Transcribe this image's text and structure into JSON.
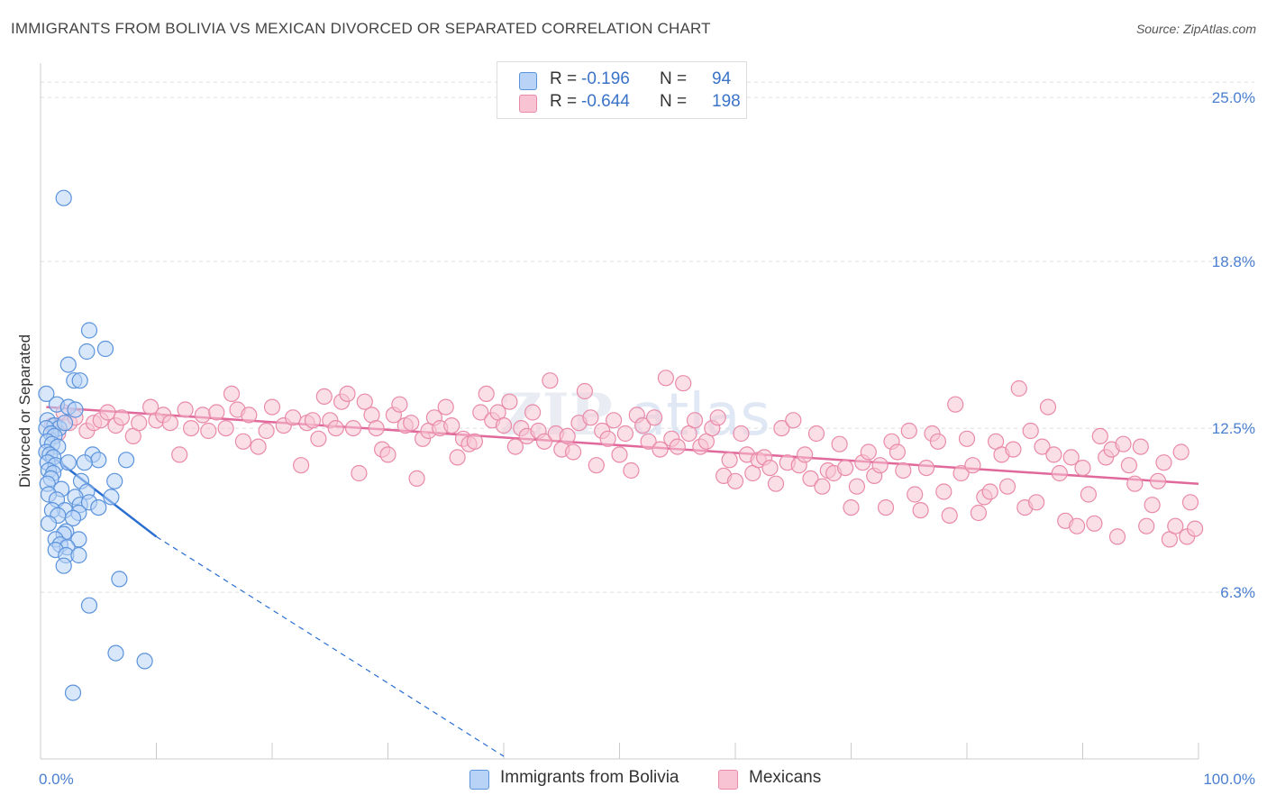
{
  "header": {
    "title": "IMMIGRANTS FROM BOLIVIA VS MEXICAN DIVORCED OR SEPARATED CORRELATION CHART",
    "source": "Source: ZipAtlas.com"
  },
  "legend": {
    "rows": [
      {
        "r_label": "R =",
        "r_value": "-0.196",
        "n_label": "N =",
        "n_value": "94"
      },
      {
        "r_label": "R =",
        "r_value": "-0.644",
        "n_label": "N =",
        "n_value": "198"
      }
    ]
  },
  "colors": {
    "bolivia_fill": "#b8d3f5",
    "bolivia_stroke": "#5b93dc",
    "bolivia_line": "#2a6fd0",
    "mexican_fill": "#f8c4d4",
    "mexican_stroke": "#e98aa9",
    "mexican_line": "#e0689a",
    "tick_text": "#4a7fd0",
    "grid": "#dddddd"
  },
  "chart_data": {
    "type": "scatter",
    "title": "IMMIGRANTS FROM BOLIVIA VS MEXICAN DIVORCED OR SEPARATED CORRELATION CHART",
    "xlabel": "",
    "ylabel": "Divorced or Separated",
    "xlim": [
      0,
      100
    ],
    "ylim": [
      0,
      26.3
    ],
    "y_ticks": [
      6.3,
      12.5,
      18.8,
      25.0
    ],
    "y_tick_labels": [
      "6.3%",
      "12.5%",
      "18.8%",
      "25.0%"
    ],
    "x_tick_labels": [
      "0.0%",
      "100.0%"
    ],
    "grid": true,
    "legend_position": "top-center",
    "series": [
      {
        "name": "Immigrants from Bolivia",
        "color": "#5b93dc",
        "trend": {
          "x": [
            0.5,
            10.0
          ],
          "y": [
            11.6,
            8.4
          ],
          "dashed_to": [
            40.0,
            0.1
          ]
        },
        "points": [
          [
            2.0,
            21.2
          ],
          [
            4.2,
            16.2
          ],
          [
            4.0,
            15.4
          ],
          [
            5.6,
            15.5
          ],
          [
            2.4,
            14.9
          ],
          [
            2.9,
            14.3
          ],
          [
            3.4,
            14.3
          ],
          [
            0.5,
            13.8
          ],
          [
            1.4,
            13.4
          ],
          [
            2.4,
            13.3
          ],
          [
            3.0,
            13.2
          ],
          [
            0.6,
            12.8
          ],
          [
            1.2,
            12.6
          ],
          [
            1.6,
            12.5
          ],
          [
            2.1,
            12.7
          ],
          [
            0.5,
            12.5
          ],
          [
            0.9,
            12.3
          ],
          [
            1.2,
            12.2
          ],
          [
            0.6,
            12.0
          ],
          [
            1.0,
            11.9
          ],
          [
            1.5,
            11.8
          ],
          [
            0.5,
            11.6
          ],
          [
            0.8,
            11.5
          ],
          [
            1.1,
            11.4
          ],
          [
            4.5,
            11.5
          ],
          [
            5.0,
            11.3
          ],
          [
            7.4,
            11.3
          ],
          [
            0.6,
            11.2
          ],
          [
            1.3,
            11.1
          ],
          [
            2.4,
            11.2
          ],
          [
            3.8,
            11.2
          ],
          [
            0.7,
            10.9
          ],
          [
            1.1,
            10.8
          ],
          [
            0.9,
            10.6
          ],
          [
            0.6,
            10.4
          ],
          [
            3.5,
            10.5
          ],
          [
            6.4,
            10.5
          ],
          [
            1.8,
            10.2
          ],
          [
            4.0,
            10.1
          ],
          [
            0.7,
            10.0
          ],
          [
            3.0,
            9.9
          ],
          [
            6.1,
            9.9
          ],
          [
            1.4,
            9.8
          ],
          [
            3.4,
            9.6
          ],
          [
            4.2,
            9.7
          ],
          [
            5.0,
            9.5
          ],
          [
            2.1,
            9.4
          ],
          [
            1.0,
            9.4
          ],
          [
            3.3,
            9.3
          ],
          [
            1.5,
            9.2
          ],
          [
            2.8,
            9.1
          ],
          [
            0.7,
            8.9
          ],
          [
            2.2,
            8.6
          ],
          [
            2.0,
            8.5
          ],
          [
            1.3,
            8.3
          ],
          [
            3.3,
            8.3
          ],
          [
            1.7,
            8.1
          ],
          [
            2.3,
            8.0
          ],
          [
            1.3,
            7.9
          ],
          [
            2.2,
            7.7
          ],
          [
            3.3,
            7.7
          ],
          [
            2.0,
            7.3
          ],
          [
            6.8,
            6.8
          ],
          [
            4.2,
            5.8
          ],
          [
            6.5,
            4.0
          ],
          [
            9.0,
            3.7
          ],
          [
            2.8,
            2.5
          ]
        ]
      },
      {
        "name": "Mexicans",
        "color": "#e98aa9",
        "trend": {
          "x": [
            0.5,
            100.0
          ],
          "y": [
            13.3,
            10.4
          ]
        },
        "points": [
          [
            1.0,
            12.6
          ],
          [
            1.5,
            12.3
          ],
          [
            2.0,
            13.1
          ],
          [
            2.5,
            12.7
          ],
          [
            3.0,
            12.9
          ],
          [
            4.0,
            12.4
          ],
          [
            4.6,
            12.7
          ],
          [
            5.2,
            12.8
          ],
          [
            5.8,
            13.1
          ],
          [
            6.5,
            12.6
          ],
          [
            7.0,
            12.9
          ],
          [
            8.0,
            12.2
          ],
          [
            8.5,
            12.7
          ],
          [
            9.5,
            13.3
          ],
          [
            10.0,
            12.8
          ],
          [
            10.6,
            13.0
          ],
          [
            11.2,
            12.7
          ],
          [
            12.0,
            11.5
          ],
          [
            12.5,
            13.2
          ],
          [
            13.0,
            12.5
          ],
          [
            14.0,
            13.0
          ],
          [
            14.5,
            12.4
          ],
          [
            15.2,
            13.1
          ],
          [
            16.0,
            12.5
          ],
          [
            16.5,
            13.8
          ],
          [
            17.0,
            13.2
          ],
          [
            17.5,
            12.0
          ],
          [
            18.0,
            13.0
          ],
          [
            18.8,
            11.8
          ],
          [
            19.5,
            12.4
          ],
          [
            20.0,
            13.3
          ],
          [
            21.0,
            12.6
          ],
          [
            21.8,
            12.9
          ],
          [
            22.5,
            11.1
          ],
          [
            23.0,
            12.7
          ],
          [
            23.5,
            12.8
          ],
          [
            24.0,
            12.1
          ],
          [
            24.5,
            13.7
          ],
          [
            25.0,
            12.8
          ],
          [
            25.5,
            12.5
          ],
          [
            26.0,
            13.5
          ],
          [
            26.5,
            13.8
          ],
          [
            27.0,
            12.5
          ],
          [
            27.5,
            10.8
          ],
          [
            28.0,
            13.5
          ],
          [
            28.6,
            13.0
          ],
          [
            29.0,
            12.5
          ],
          [
            29.5,
            11.7
          ],
          [
            30.0,
            11.5
          ],
          [
            30.5,
            13.0
          ],
          [
            31.0,
            13.4
          ],
          [
            31.5,
            12.6
          ],
          [
            32.0,
            12.7
          ],
          [
            32.5,
            10.6
          ],
          [
            33.0,
            12.1
          ],
          [
            33.5,
            12.4
          ],
          [
            34.0,
            12.9
          ],
          [
            34.5,
            12.5
          ],
          [
            35.0,
            13.3
          ],
          [
            35.5,
            12.6
          ],
          [
            36.0,
            11.4
          ],
          [
            36.5,
            12.1
          ],
          [
            37.0,
            11.9
          ],
          [
            37.5,
            12.0
          ],
          [
            38.0,
            13.1
          ],
          [
            38.5,
            13.8
          ],
          [
            39.0,
            12.8
          ],
          [
            39.5,
            13.1
          ],
          [
            40.0,
            12.6
          ],
          [
            40.5,
            13.5
          ],
          [
            41.0,
            11.8
          ],
          [
            41.5,
            12.5
          ],
          [
            42.0,
            12.2
          ],
          [
            42.5,
            13.1
          ],
          [
            43.0,
            12.4
          ],
          [
            43.5,
            12.0
          ],
          [
            44.0,
            14.3
          ],
          [
            44.5,
            12.3
          ],
          [
            45.0,
            11.7
          ],
          [
            45.5,
            12.2
          ],
          [
            46.0,
            11.6
          ],
          [
            46.5,
            12.7
          ],
          [
            47.0,
            13.9
          ],
          [
            47.5,
            12.9
          ],
          [
            48.0,
            11.1
          ],
          [
            48.5,
            12.4
          ],
          [
            49.0,
            12.1
          ],
          [
            49.5,
            12.8
          ],
          [
            50.0,
            11.5
          ],
          [
            50.5,
            12.3
          ],
          [
            51.0,
            10.9
          ],
          [
            51.5,
            13.0
          ],
          [
            52.0,
            12.6
          ],
          [
            52.5,
            12.0
          ],
          [
            53.0,
            12.9
          ],
          [
            53.5,
            11.7
          ],
          [
            54.0,
            14.4
          ],
          [
            54.5,
            12.1
          ],
          [
            55.0,
            11.8
          ],
          [
            55.5,
            14.2
          ],
          [
            56.0,
            12.3
          ],
          [
            56.5,
            12.8
          ],
          [
            57.0,
            11.8
          ],
          [
            57.5,
            12.0
          ],
          [
            58.0,
            12.5
          ],
          [
            58.5,
            12.9
          ],
          [
            59.0,
            10.7
          ],
          [
            59.5,
            11.3
          ],
          [
            60.0,
            10.5
          ],
          [
            60.5,
            12.3
          ],
          [
            61.0,
            11.5
          ],
          [
            61.5,
            10.8
          ],
          [
            62.0,
            11.3
          ],
          [
            62.5,
            11.4
          ],
          [
            63.0,
            11.0
          ],
          [
            63.5,
            10.4
          ],
          [
            64.0,
            12.5
          ],
          [
            64.5,
            11.2
          ],
          [
            65.0,
            12.8
          ],
          [
            65.5,
            11.1
          ],
          [
            66.0,
            11.5
          ],
          [
            66.5,
            10.6
          ],
          [
            67.0,
            12.3
          ],
          [
            67.5,
            10.3
          ],
          [
            68.0,
            10.9
          ],
          [
            68.5,
            10.8
          ],
          [
            69.0,
            11.9
          ],
          [
            69.5,
            11.0
          ],
          [
            70.0,
            9.5
          ],
          [
            70.5,
            10.3
          ],
          [
            71.0,
            11.2
          ],
          [
            71.5,
            11.6
          ],
          [
            72.0,
            10.7
          ],
          [
            72.5,
            11.1
          ],
          [
            73.0,
            9.5
          ],
          [
            73.5,
            12.0
          ],
          [
            74.0,
            11.6
          ],
          [
            74.5,
            10.9
          ],
          [
            75.0,
            12.4
          ],
          [
            75.5,
            10.0
          ],
          [
            76.0,
            9.4
          ],
          [
            76.5,
            11.0
          ],
          [
            77.0,
            12.3
          ],
          [
            77.5,
            12.0
          ],
          [
            78.0,
            10.1
          ],
          [
            78.5,
            9.2
          ],
          [
            79.0,
            13.4
          ],
          [
            79.5,
            10.8
          ],
          [
            80.0,
            12.1
          ],
          [
            80.5,
            11.1
          ],
          [
            81.0,
            9.3
          ],
          [
            81.5,
            9.9
          ],
          [
            82.0,
            10.1
          ],
          [
            82.5,
            12.0
          ],
          [
            83.0,
            11.5
          ],
          [
            83.5,
            10.3
          ],
          [
            84.0,
            11.7
          ],
          [
            84.5,
            14.0
          ],
          [
            85.0,
            9.5
          ],
          [
            85.5,
            12.4
          ],
          [
            86.0,
            9.7
          ],
          [
            86.5,
            11.8
          ],
          [
            87.0,
            13.3
          ],
          [
            87.5,
            11.5
          ],
          [
            88.0,
            10.8
          ],
          [
            88.5,
            9.0
          ],
          [
            89.0,
            11.4
          ],
          [
            89.5,
            8.8
          ],
          [
            90.0,
            11.0
          ],
          [
            90.5,
            10.0
          ],
          [
            91.0,
            8.9
          ],
          [
            91.5,
            12.2
          ],
          [
            92.0,
            11.4
          ],
          [
            92.5,
            11.7
          ],
          [
            93.0,
            8.4
          ],
          [
            93.5,
            11.9
          ],
          [
            94.0,
            11.1
          ],
          [
            94.5,
            10.4
          ],
          [
            95.0,
            11.8
          ],
          [
            95.5,
            8.8
          ],
          [
            96.0,
            9.6
          ],
          [
            96.5,
            10.5
          ],
          [
            97.0,
            11.2
          ],
          [
            97.5,
            8.3
          ],
          [
            98.0,
            8.8
          ],
          [
            98.5,
            11.6
          ],
          [
            99.0,
            8.4
          ],
          [
            99.3,
            9.7
          ],
          [
            99.7,
            8.7
          ]
        ]
      }
    ]
  }
}
